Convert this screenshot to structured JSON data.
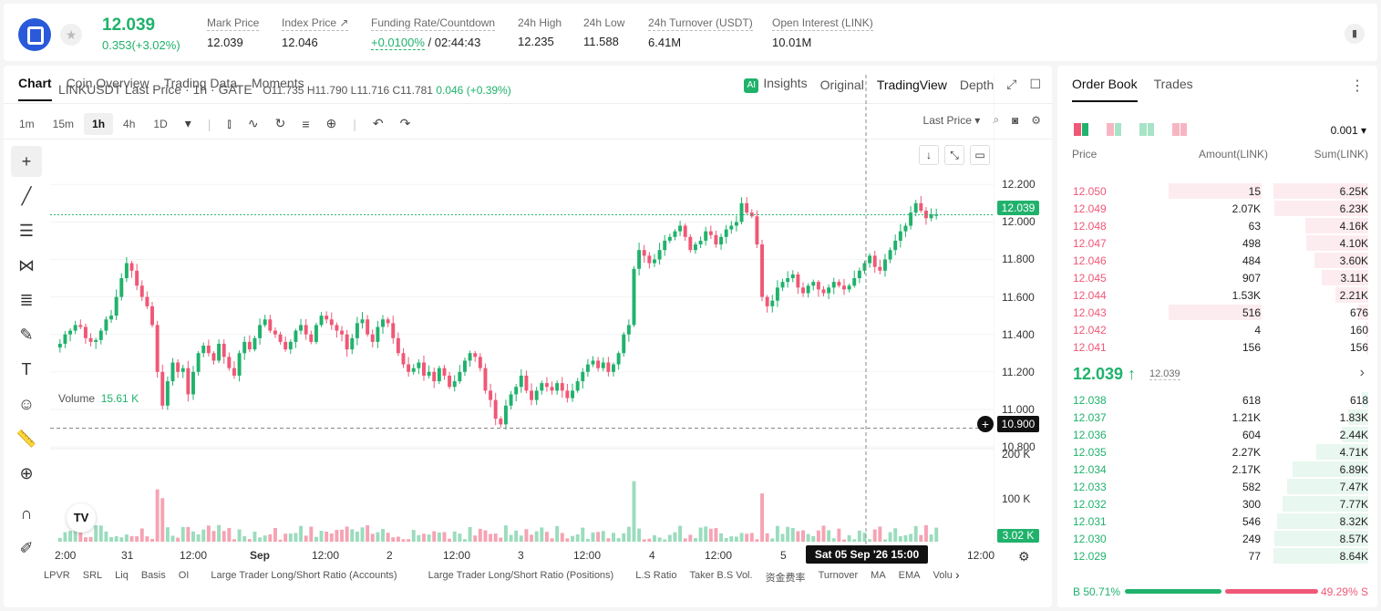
{
  "header": {
    "price": "12.039",
    "change": "0.353(+3.02%)",
    "stats": [
      {
        "label": "Mark Price",
        "value": "12.039"
      },
      {
        "label": "Index Price ↗",
        "value": "12.046"
      },
      {
        "label": "Funding Rate/Countdown",
        "value_green": "+0.0100%",
        "value": " / 02:44:43"
      },
      {
        "label": "24h High",
        "value": "12.235"
      },
      {
        "label": "24h Low",
        "value": "11.588"
      },
      {
        "label": "24h Turnover (USDT)",
        "value": "6.41M"
      },
      {
        "label": "Open Interest (LINK)",
        "value": "10.01M"
      }
    ]
  },
  "chart_tabs": [
    "Chart",
    "Coin Overview",
    "Trading Data",
    "Moments"
  ],
  "right_tabs": {
    "insights": "Insights",
    "original": "Original",
    "tradingview": "TradingView",
    "depth": "Depth"
  },
  "intervals": [
    "1m",
    "15m",
    "1h",
    "4h",
    "1D"
  ],
  "last_price_select": "Last Price",
  "legend": {
    "symbol": "LINKUSDT Last Price · 1h · GATE",
    "o": "O11.735",
    "h": "H11.790",
    "l": "L11.716",
    "c": "C11.781",
    "change": "0.046 (+0.39%)"
  },
  "volume_label": {
    "label": "Volume",
    "value": "15.61 K"
  },
  "y_axis": [
    "12.200",
    "12.000",
    "11.800",
    "11.600",
    "11.400",
    "11.200",
    "11.000",
    "10.800"
  ],
  "vol_axis": [
    "200 K",
    "100 K"
  ],
  "price_tag": "12.039",
  "cross_tag": "10.900",
  "vol_tag": "3.02 K",
  "date_tag": "Sat 05 Sep '26   15:00",
  "x_axis": [
    "2:00",
    "31",
    "12:00",
    "Sep",
    "12:00",
    "2",
    "12:00",
    "3",
    "12:00",
    "4",
    "12:00",
    "5",
    "12:00"
  ],
  "indicators": [
    "LPVR",
    "SRL",
    "Liq",
    "Basis",
    "OI",
    "Large Trader Long/Short Ratio (Accounts)",
    "Large Trader Long/Short Ratio (Positions)",
    "L.S Ratio",
    "Taker B.S Vol.",
    "资金费率",
    "Turnover",
    "MA",
    "EMA",
    "Volu"
  ],
  "chart_data": {
    "type": "candlestick",
    "ylim": [
      10.8,
      12.25
    ],
    "last_price": 12.039,
    "crosshair_price": 10.9,
    "closes": [
      11.35,
      11.4,
      11.42,
      11.45,
      11.44,
      11.38,
      11.36,
      11.37,
      11.42,
      11.48,
      11.5,
      11.6,
      11.7,
      11.78,
      11.74,
      11.66,
      11.6,
      11.55,
      11.45,
      11.2,
      11.02,
      11.15,
      11.25,
      11.2,
      11.22,
      11.08,
      11.2,
      11.3,
      11.34,
      11.3,
      11.26,
      11.35,
      11.28,
      11.22,
      11.18,
      11.3,
      11.36,
      11.32,
      11.38,
      11.45,
      11.48,
      11.42,
      11.4,
      11.36,
      11.32,
      11.36,
      11.42,
      11.45,
      11.4,
      11.36,
      11.45,
      11.5,
      11.48,
      11.45,
      11.42,
      11.4,
      11.32,
      11.38,
      11.46,
      11.48,
      11.4,
      11.36,
      11.44,
      11.48,
      11.46,
      11.38,
      11.3,
      11.24,
      11.2,
      11.22,
      11.25,
      11.18,
      11.2,
      11.15,
      11.22,
      11.18,
      11.12,
      11.15,
      11.2,
      11.26,
      11.3,
      11.28,
      11.22,
      11.1,
      11.05,
      10.95,
      10.92,
      11.02,
      11.08,
      11.12,
      11.18,
      11.1,
      11.05,
      11.1,
      11.14,
      11.12,
      11.1,
      11.14,
      11.1,
      11.06,
      11.1,
      11.15,
      11.2,
      11.24,
      11.26,
      11.22,
      11.25,
      11.2,
      11.24,
      11.3,
      11.4,
      11.45,
      11.75,
      11.85,
      11.82,
      11.78,
      11.8,
      11.85,
      11.9,
      11.92,
      11.95,
      11.98,
      11.92,
      11.85,
      11.88,
      11.9,
      11.95,
      11.93,
      11.88,
      11.92,
      11.96,
      11.98,
      12.0,
      12.1,
      12.05,
      12.03,
      11.88,
      11.6,
      11.55,
      11.58,
      11.65,
      11.68,
      11.7,
      11.72,
      11.65,
      11.62,
      11.66,
      11.68,
      11.64,
      11.62,
      11.65,
      11.68,
      11.66,
      11.64,
      11.66,
      11.7,
      11.74,
      11.78,
      11.82,
      11.76,
      11.74,
      11.8,
      11.85,
      11.9,
      11.95,
      11.98,
      12.05,
      12.1,
      12.06,
      12.02,
      12.04,
      12.04
    ],
    "volume_max_k": 200
  },
  "orderbook": {
    "tabs": [
      "Order Book",
      "Trades"
    ],
    "precision": "0.001",
    "headers": [
      "Price",
      "Amount(LINK)",
      "Sum(LINK)"
    ],
    "asks": [
      {
        "p": "12.050",
        "a": "15",
        "s": "6.25K",
        "af": 0.33,
        "sf": 1.0
      },
      {
        "p": "12.049",
        "a": "2.07K",
        "s": "6.23K",
        "af": 0.0,
        "sf": 0.99
      },
      {
        "p": "12.048",
        "a": "63",
        "s": "4.16K",
        "af": 0.0,
        "sf": 0.66
      },
      {
        "p": "12.047",
        "a": "498",
        "s": "4.10K",
        "af": 0.0,
        "sf": 0.65
      },
      {
        "p": "12.046",
        "a": "484",
        "s": "3.60K",
        "af": 0.0,
        "sf": 0.57
      },
      {
        "p": "12.045",
        "a": "907",
        "s": "3.11K",
        "af": 0.0,
        "sf": 0.49
      },
      {
        "p": "12.044",
        "a": "1.53K",
        "s": "2.21K",
        "af": 0.0,
        "sf": 0.35
      },
      {
        "p": "12.043",
        "a": "516",
        "s": "676",
        "af": 0.33,
        "sf": 0.11
      },
      {
        "p": "12.042",
        "a": "4",
        "s": "160",
        "af": 0.0,
        "sf": 0.03
      },
      {
        "p": "12.041",
        "a": "156",
        "s": "156",
        "af": 0.0,
        "sf": 0.02
      }
    ],
    "mid_price": "12.039 ↑",
    "mark": "12.039",
    "bids": [
      {
        "p": "12.038",
        "a": "618",
        "s": "618",
        "sf": 0.07
      },
      {
        "p": "12.037",
        "a": "1.21K",
        "s": "1.83K",
        "sf": 0.21
      },
      {
        "p": "12.036",
        "a": "604",
        "s": "2.44K",
        "sf": 0.28
      },
      {
        "p": "12.035",
        "a": "2.27K",
        "s": "4.71K",
        "sf": 0.55
      },
      {
        "p": "12.034",
        "a": "2.17K",
        "s": "6.89K",
        "sf": 0.8
      },
      {
        "p": "12.033",
        "a": "582",
        "s": "7.47K",
        "sf": 0.86
      },
      {
        "p": "12.032",
        "a": "300",
        "s": "7.77K",
        "sf": 0.9
      },
      {
        "p": "12.031",
        "a": "546",
        "s": "8.32K",
        "sf": 0.96
      },
      {
        "p": "12.030",
        "a": "249",
        "s": "8.57K",
        "sf": 0.99
      },
      {
        "p": "12.029",
        "a": "77",
        "s": "8.64K",
        "sf": 1.0
      }
    ],
    "buy_ratio": "B 50.71%",
    "sell_ratio": "49.29% S",
    "buy_fraction": 0.5071
  },
  "colors": {
    "up": "#20b26c",
    "down": "#ef5876",
    "up_light": "#e8f7ef",
    "down_light": "#fdecef"
  }
}
